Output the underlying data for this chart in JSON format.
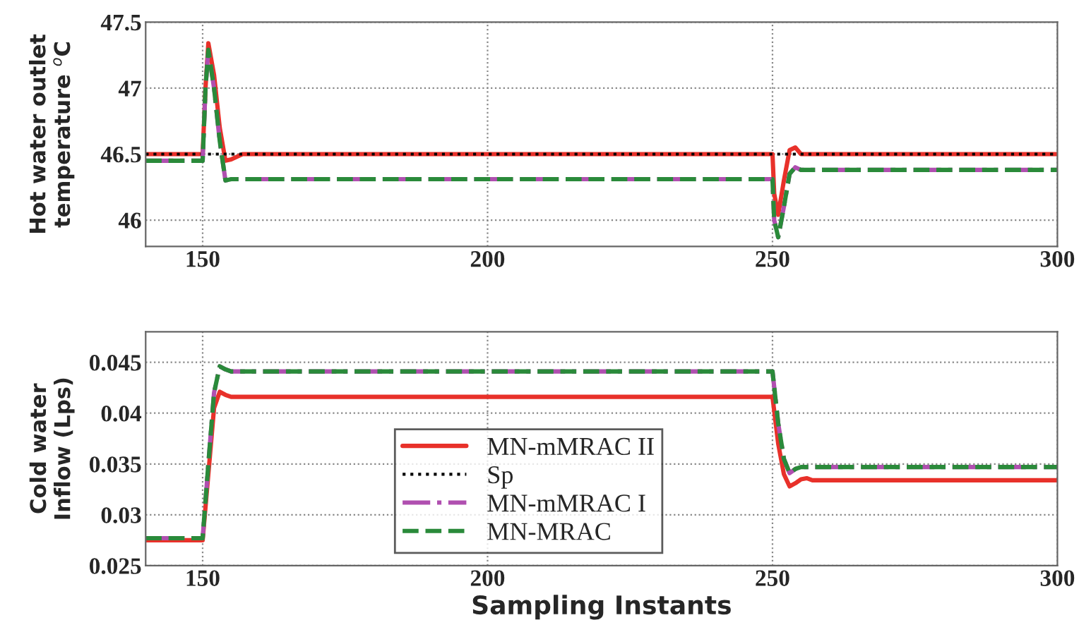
{
  "chart_data": [
    {
      "type": "line",
      "ylabel": "Hot water outlet\ntemperature $^{o}$C",
      "xlim": [
        140,
        300
      ],
      "ylim": [
        45.8,
        47.5
      ],
      "xticks": [
        150,
        200,
        250,
        300
      ],
      "yticks": [
        46,
        46.5,
        47,
        47.5
      ],
      "grid": true,
      "legend": false,
      "series": [
        {
          "color": "#e8312a",
          "line_style": "solid",
          "x": [
            140,
            150,
            150.5,
            151,
            152,
            153,
            154,
            155,
            157,
            250,
            250.3,
            251,
            252,
            253,
            254,
            255,
            256,
            300
          ],
          "values": [
            46.5,
            46.5,
            47.0,
            47.34,
            47.1,
            46.7,
            46.45,
            46.46,
            46.5,
            46.5,
            46.2,
            46.04,
            46.3,
            46.53,
            46.55,
            46.5,
            46.5,
            46.5
          ]
        },
        {
          "color": "#000000",
          "line_style": "dotted",
          "x": [
            140,
            300
          ],
          "values": [
            46.5,
            46.5
          ]
        },
        {
          "color": "#b04fb0",
          "line_style": "dashdot",
          "x": [
            140,
            150,
            150.5,
            151,
            152,
            153,
            154,
            155,
            250,
            250.3,
            251,
            252,
            253,
            254,
            255,
            300
          ],
          "values": [
            46.45,
            46.45,
            47.0,
            47.29,
            47.0,
            46.6,
            46.3,
            46.31,
            46.31,
            46.0,
            45.87,
            46.1,
            46.35,
            46.4,
            46.38,
            46.38
          ]
        },
        {
          "color": "#2a8a3a",
          "line_style": "dashed",
          "x": [
            140,
            150,
            150.5,
            151,
            152,
            153,
            154,
            155,
            250,
            250.3,
            251,
            252,
            253,
            254,
            255,
            300
          ],
          "values": [
            46.45,
            46.45,
            47.0,
            47.29,
            47.0,
            46.6,
            46.3,
            46.31,
            46.31,
            46.0,
            45.87,
            46.1,
            46.35,
            46.4,
            46.38,
            46.38
          ]
        }
      ]
    },
    {
      "type": "line",
      "xlabel": "Sampling Instants",
      "ylabel": "Cold water\nInflow (Lps)",
      "xlim": [
        140,
        300
      ],
      "ylim": [
        0.025,
        0.048
      ],
      "xticks": [
        150,
        200,
        250,
        300
      ],
      "yticks": [
        0.025,
        0.03,
        0.035,
        0.04,
        0.045
      ],
      "grid": true,
      "legend": "bottom",
      "series": [
        {
          "name": "MN-mMRAC II",
          "color": "#e8312a",
          "line_style": "solid",
          "x": [
            140,
            150,
            151,
            152,
            153,
            154,
            155,
            250,
            251,
            252,
            253,
            254,
            255,
            256,
            257,
            300
          ],
          "values": [
            0.0275,
            0.0275,
            0.034,
            0.0405,
            0.0421,
            0.0418,
            0.0416,
            0.0416,
            0.037,
            0.034,
            0.0328,
            0.0331,
            0.0335,
            0.0336,
            0.0334,
            0.0334
          ]
        },
        {
          "name": "Sp",
          "color": "#000000",
          "line_style": "dotted"
        },
        {
          "name": "MN-mMRAC I",
          "color": "#b04fb0",
          "line_style": "dashdot",
          "x": [
            140,
            150,
            151,
            152,
            153,
            154,
            155,
            250,
            251,
            252,
            253,
            254,
            255,
            300
          ],
          "values": [
            0.0277,
            0.0277,
            0.035,
            0.042,
            0.0446,
            0.0443,
            0.0441,
            0.0441,
            0.039,
            0.0355,
            0.0341,
            0.0345,
            0.0347,
            0.0347
          ]
        },
        {
          "name": "MN-MRAC",
          "color": "#2a8a3a",
          "line_style": "dashed",
          "x": [
            140,
            150,
            151,
            152,
            153,
            154,
            155,
            250,
            251,
            252,
            253,
            254,
            255,
            300
          ],
          "values": [
            0.0277,
            0.0277,
            0.035,
            0.042,
            0.0446,
            0.0443,
            0.0441,
            0.0441,
            0.039,
            0.0355,
            0.0341,
            0.0345,
            0.0347,
            0.0347
          ]
        }
      ]
    }
  ]
}
